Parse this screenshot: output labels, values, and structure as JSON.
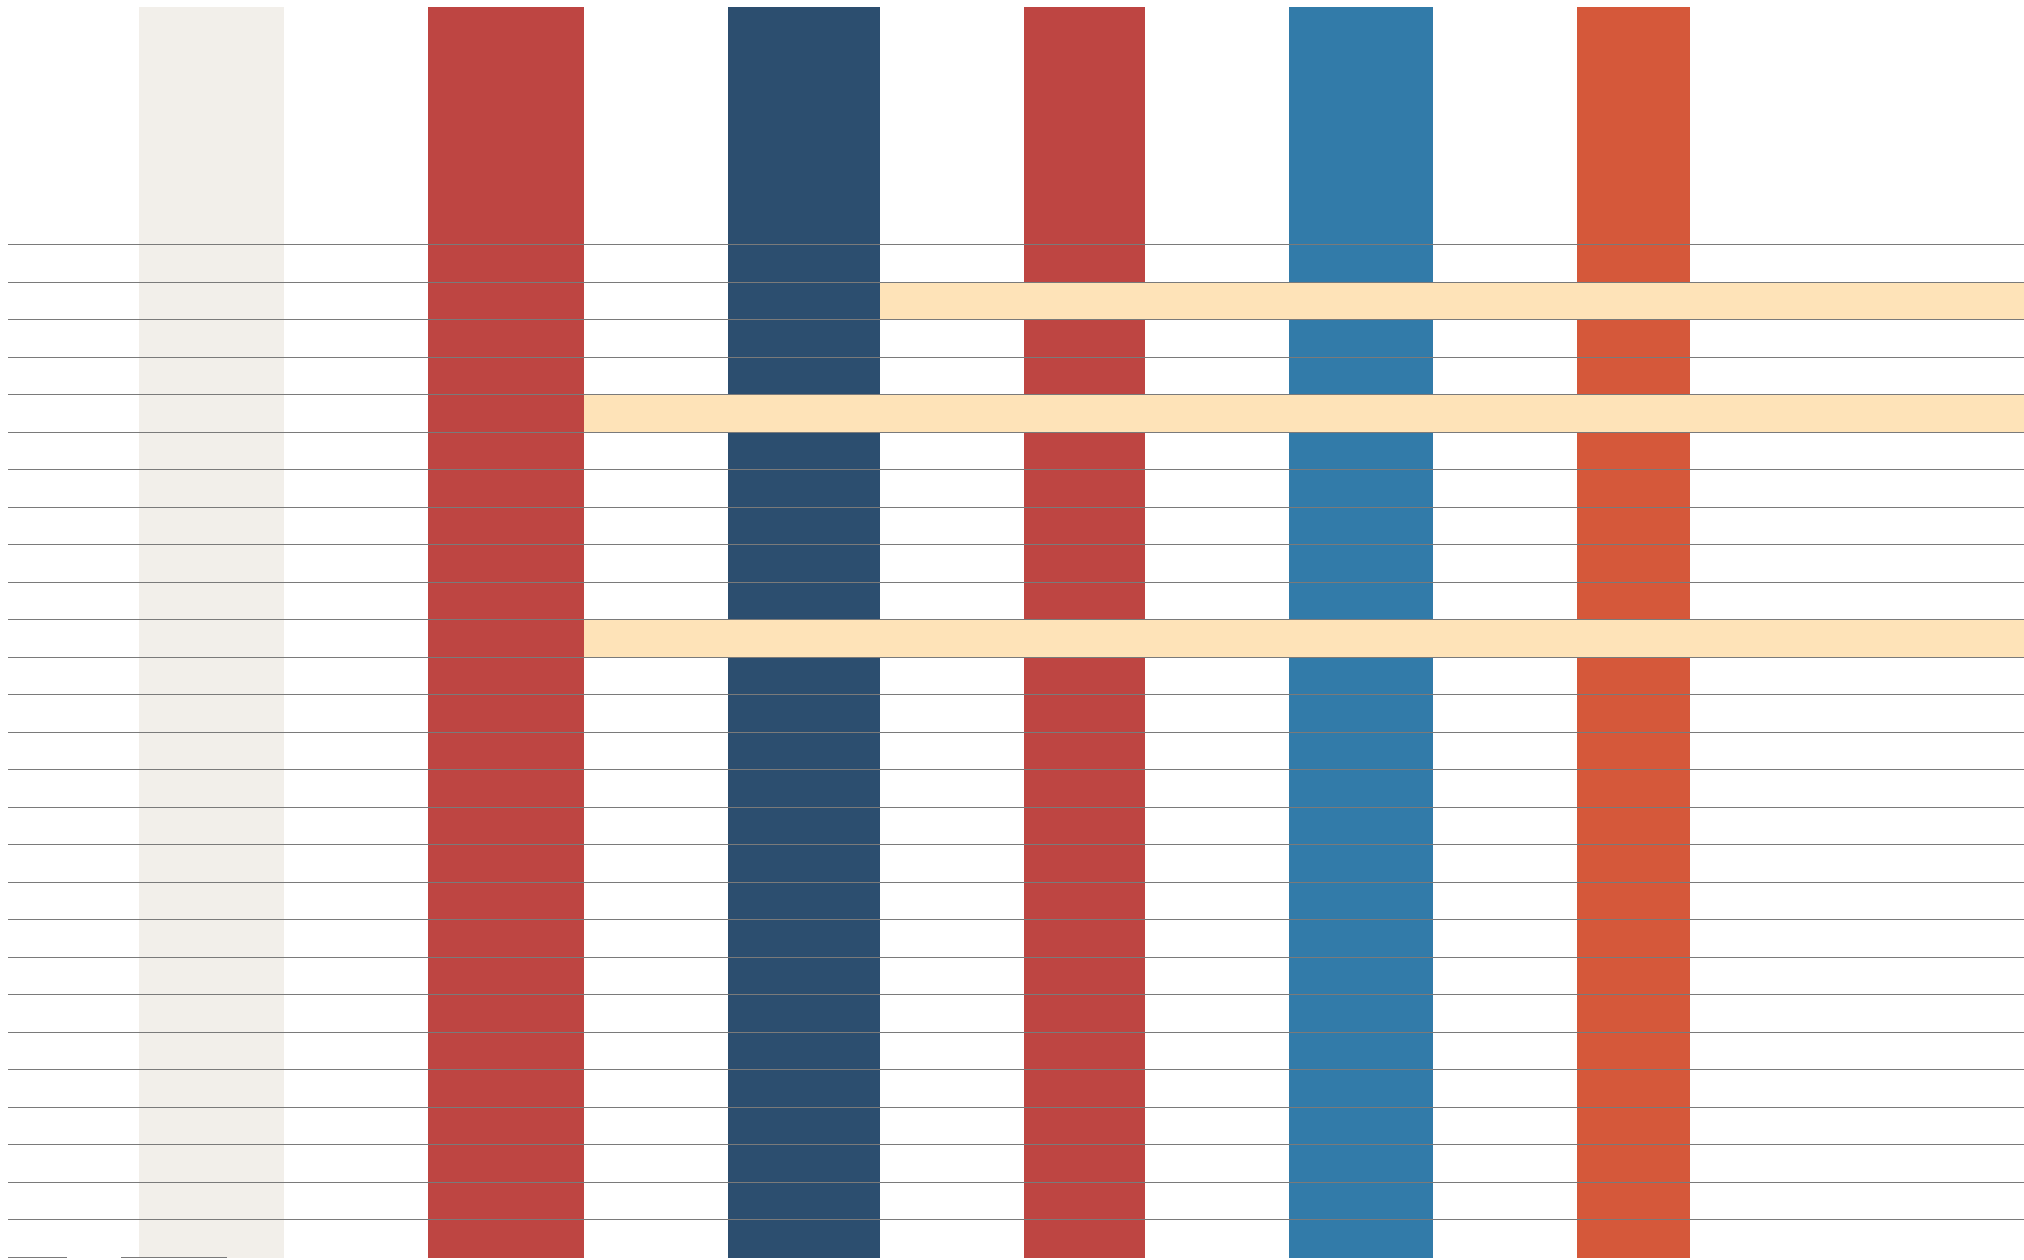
{
  "colors": {
    "column_1": "#f2efea",
    "column_2": "#be4542",
    "column_3": "#2c4e6f",
    "column_4": "#be4542",
    "column_5": "#327ba9",
    "column_6": "#d5583a",
    "highlight_band": "#fee3b8",
    "rule_line": "#7a7a7a"
  },
  "grid": {
    "row_count": 27
  },
  "highlight_bands": {
    "count": 3
  }
}
